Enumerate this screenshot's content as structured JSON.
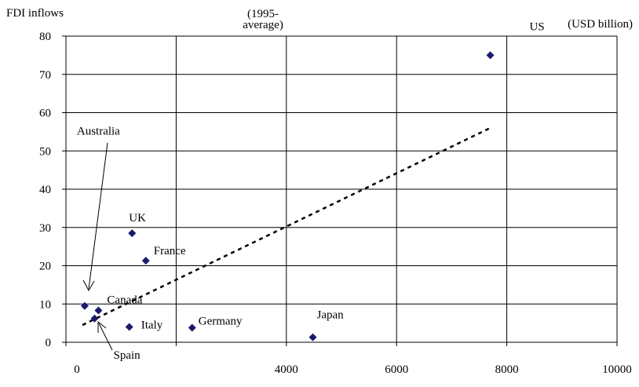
{
  "chart_data": {
    "type": "scatter",
    "title": "",
    "ylabel": "FDI inflows",
    "header_note": "(1995-\naverage)",
    "unit_note": "(USD billion)",
    "xlim": [
      0,
      10000
    ],
    "ylim": [
      0,
      80
    ],
    "x_ticks": [
      "0",
      "",
      "4000",
      "6000",
      "8000",
      "10000"
    ],
    "x_tick_values": [
      0,
      2000,
      4000,
      6000,
      8000,
      10000
    ],
    "y_ticks": [
      "0",
      "10",
      "20",
      "30",
      "40",
      "50",
      "60",
      "70",
      "80"
    ],
    "y_tick_values": [
      0,
      10,
      20,
      30,
      40,
      50,
      60,
      70,
      80
    ],
    "grid": true,
    "points": [
      {
        "name": "US",
        "x": 7700,
        "y": 75
      },
      {
        "name": "UK",
        "x": 1200,
        "y": 28.5
      },
      {
        "name": "France",
        "x": 1450,
        "y": 21.3
      },
      {
        "name": "Australia",
        "x": 340,
        "y": 9.5
      },
      {
        "name": "Canada",
        "x": 590,
        "y": 8.3
      },
      {
        "name": "Spain",
        "x": 520,
        "y": 6.2
      },
      {
        "name": "Italy",
        "x": 1150,
        "y": 4
      },
      {
        "name": "Germany",
        "x": 2290,
        "y": 3.8
      },
      {
        "name": "Japan",
        "x": 4480,
        "y": 1.3
      }
    ],
    "trendline": {
      "x": [
        300,
        7700
      ],
      "y": [
        4.5,
        56
      ]
    },
    "marker_color": "#1a1a6e"
  }
}
